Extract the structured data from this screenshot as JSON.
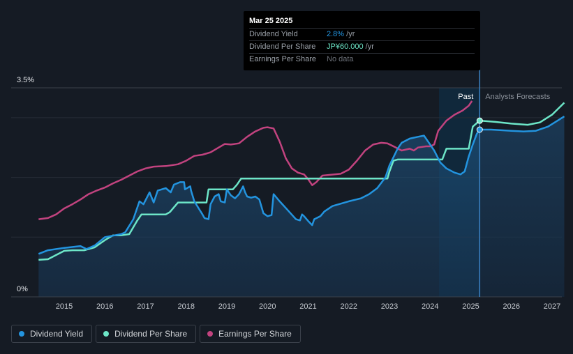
{
  "chart_data": {
    "type": "line",
    "x_range": [
      2014.0,
      2027.3
    ],
    "ylim": [
      0,
      3.5
    ],
    "y_tick_labels": [
      {
        "value": 3.5,
        "label": "3.5%"
      },
      {
        "value": 0,
        "label": "0%"
      }
    ],
    "x_ticks": [
      "2015",
      "2016",
      "2017",
      "2018",
      "2019",
      "2020",
      "2021",
      "2022",
      "2023",
      "2024",
      "2025",
      "2026",
      "2027"
    ],
    "grid": true,
    "regions": {
      "past_label": "Past",
      "forecast_label": "Analysts Forecasts",
      "forecast_start": 2025.22,
      "highlight_start": 2024.22
    },
    "series": [
      {
        "name": "Dividend Yield",
        "color": "#2394df",
        "points": [
          [
            2014.37,
            0.72
          ],
          [
            2014.6,
            0.78
          ],
          [
            2015.0,
            0.82
          ],
          [
            2015.4,
            0.85
          ],
          [
            2015.55,
            0.8
          ],
          [
            2015.75,
            0.86
          ],
          [
            2016.0,
            1.0
          ],
          [
            2016.4,
            1.05
          ],
          [
            2016.5,
            1.08
          ],
          [
            2016.7,
            1.3
          ],
          [
            2016.85,
            1.6
          ],
          [
            2016.95,
            1.55
          ],
          [
            2017.1,
            1.75
          ],
          [
            2017.2,
            1.58
          ],
          [
            2017.3,
            1.78
          ],
          [
            2017.5,
            1.82
          ],
          [
            2017.62,
            1.75
          ],
          [
            2017.7,
            1.88
          ],
          [
            2017.85,
            1.92
          ],
          [
            2017.95,
            1.92
          ],
          [
            2017.97,
            1.8
          ],
          [
            2018.1,
            1.85
          ],
          [
            2018.12,
            1.78
          ],
          [
            2018.2,
            1.6
          ],
          [
            2018.4,
            1.38
          ],
          [
            2018.45,
            1.32
          ],
          [
            2018.55,
            1.3
          ],
          [
            2018.6,
            1.55
          ],
          [
            2018.7,
            1.68
          ],
          [
            2018.8,
            1.72
          ],
          [
            2018.85,
            1.6
          ],
          [
            2018.95,
            1.58
          ],
          [
            2019.0,
            1.8
          ],
          [
            2019.1,
            1.7
          ],
          [
            2019.2,
            1.65
          ],
          [
            2019.3,
            1.72
          ],
          [
            2019.4,
            1.85
          ],
          [
            2019.45,
            1.75
          ],
          [
            2019.5,
            1.68
          ],
          [
            2019.6,
            1.66
          ],
          [
            2019.7,
            1.68
          ],
          [
            2019.8,
            1.63
          ],
          [
            2019.9,
            1.4
          ],
          [
            2020.0,
            1.35
          ],
          [
            2020.1,
            1.37
          ],
          [
            2020.15,
            1.72
          ],
          [
            2020.2,
            1.68
          ],
          [
            2020.3,
            1.6
          ],
          [
            2020.5,
            1.45
          ],
          [
            2020.7,
            1.3
          ],
          [
            2020.8,
            1.28
          ],
          [
            2020.85,
            1.38
          ],
          [
            2020.9,
            1.35
          ],
          [
            2021.0,
            1.27
          ],
          [
            2021.1,
            1.2
          ],
          [
            2021.15,
            1.3
          ],
          [
            2021.3,
            1.35
          ],
          [
            2021.4,
            1.43
          ],
          [
            2021.6,
            1.52
          ],
          [
            2021.8,
            1.56
          ],
          [
            2022.0,
            1.6
          ],
          [
            2022.3,
            1.65
          ],
          [
            2022.5,
            1.72
          ],
          [
            2022.7,
            1.82
          ],
          [
            2022.9,
            2.0
          ],
          [
            2023.0,
            2.2
          ],
          [
            2023.2,
            2.48
          ],
          [
            2023.3,
            2.58
          ],
          [
            2023.5,
            2.65
          ],
          [
            2023.7,
            2.68
          ],
          [
            2023.85,
            2.7
          ],
          [
            2024.0,
            2.55
          ],
          [
            2024.1,
            2.45
          ],
          [
            2024.25,
            2.25
          ],
          [
            2024.4,
            2.15
          ],
          [
            2024.6,
            2.08
          ],
          [
            2024.75,
            2.05
          ],
          [
            2024.85,
            2.1
          ],
          [
            2024.95,
            2.35
          ],
          [
            2025.05,
            2.55
          ],
          [
            2025.15,
            2.73
          ],
          [
            2025.22,
            2.8
          ],
          [
            2025.5,
            2.8
          ],
          [
            2026.0,
            2.78
          ],
          [
            2026.3,
            2.77
          ],
          [
            2026.6,
            2.78
          ],
          [
            2026.9,
            2.85
          ],
          [
            2027.3,
            3.02
          ]
        ]
      },
      {
        "name": "Dividend Per Share",
        "color": "#6de6c8",
        "points": [
          [
            2014.37,
            0.62
          ],
          [
            2014.6,
            0.63
          ],
          [
            2014.8,
            0.7
          ],
          [
            2015.0,
            0.77
          ],
          [
            2015.2,
            0.78
          ],
          [
            2015.5,
            0.78
          ],
          [
            2015.75,
            0.83
          ],
          [
            2016.0,
            0.95
          ],
          [
            2016.2,
            1.03
          ],
          [
            2016.4,
            1.03
          ],
          [
            2016.6,
            1.05
          ],
          [
            2016.8,
            1.28
          ],
          [
            2016.9,
            1.38
          ],
          [
            2017.0,
            1.38
          ],
          [
            2017.5,
            1.38
          ],
          [
            2017.6,
            1.42
          ],
          [
            2017.8,
            1.58
          ],
          [
            2017.9,
            1.58
          ],
          [
            2018.5,
            1.58
          ],
          [
            2018.55,
            1.8
          ],
          [
            2019.15,
            1.8
          ],
          [
            2019.25,
            1.88
          ],
          [
            2019.35,
            1.98
          ],
          [
            2022.95,
            1.98
          ],
          [
            2023.0,
            2.1
          ],
          [
            2023.1,
            2.28
          ],
          [
            2023.2,
            2.3
          ],
          [
            2024.3,
            2.3
          ],
          [
            2024.4,
            2.48
          ],
          [
            2024.95,
            2.48
          ],
          [
            2025.05,
            2.85
          ],
          [
            2025.22,
            2.95
          ],
          [
            2025.6,
            2.93
          ],
          [
            2026.0,
            2.9
          ],
          [
            2026.4,
            2.88
          ],
          [
            2026.7,
            2.92
          ],
          [
            2027.0,
            3.05
          ],
          [
            2027.3,
            3.25
          ]
        ]
      },
      {
        "name": "Earnings Per Share",
        "color": "#c2437f",
        "points": [
          [
            2014.37,
            1.3
          ],
          [
            2014.6,
            1.32
          ],
          [
            2014.8,
            1.38
          ],
          [
            2015.0,
            1.48
          ],
          [
            2015.2,
            1.55
          ],
          [
            2015.4,
            1.63
          ],
          [
            2015.6,
            1.72
          ],
          [
            2015.8,
            1.78
          ],
          [
            2016.0,
            1.83
          ],
          [
            2016.2,
            1.9
          ],
          [
            2016.4,
            1.96
          ],
          [
            2016.6,
            2.03
          ],
          [
            2016.8,
            2.1
          ],
          [
            2017.0,
            2.15
          ],
          [
            2017.2,
            2.18
          ],
          [
            2017.5,
            2.19
          ],
          [
            2017.8,
            2.22
          ],
          [
            2018.0,
            2.28
          ],
          [
            2018.2,
            2.36
          ],
          [
            2018.4,
            2.38
          ],
          [
            2018.6,
            2.42
          ],
          [
            2018.8,
            2.5
          ],
          [
            2018.95,
            2.56
          ],
          [
            2019.1,
            2.55
          ],
          [
            2019.3,
            2.57
          ],
          [
            2019.5,
            2.68
          ],
          [
            2019.7,
            2.77
          ],
          [
            2019.9,
            2.83
          ],
          [
            2020.0,
            2.84
          ],
          [
            2020.15,
            2.82
          ],
          [
            2020.3,
            2.6
          ],
          [
            2020.45,
            2.32
          ],
          [
            2020.6,
            2.15
          ],
          [
            2020.75,
            2.08
          ],
          [
            2020.9,
            2.05
          ],
          [
            2021.0,
            1.97
          ],
          [
            2021.1,
            1.87
          ],
          [
            2021.2,
            1.92
          ],
          [
            2021.35,
            2.03
          ],
          [
            2021.5,
            2.04
          ],
          [
            2021.8,
            2.06
          ],
          [
            2022.0,
            2.13
          ],
          [
            2022.2,
            2.28
          ],
          [
            2022.4,
            2.45
          ],
          [
            2022.6,
            2.55
          ],
          [
            2022.8,
            2.58
          ],
          [
            2022.95,
            2.57
          ],
          [
            2023.1,
            2.52
          ],
          [
            2023.3,
            2.45
          ],
          [
            2023.5,
            2.48
          ],
          [
            2023.6,
            2.45
          ],
          [
            2023.7,
            2.5
          ],
          [
            2023.9,
            2.52
          ],
          [
            2024.0,
            2.52
          ],
          [
            2024.1,
            2.55
          ],
          [
            2024.2,
            2.78
          ],
          [
            2024.4,
            2.95
          ],
          [
            2024.6,
            3.05
          ],
          [
            2024.8,
            3.12
          ],
          [
            2024.95,
            3.2
          ],
          [
            2025.03,
            3.28
          ]
        ]
      }
    ],
    "markers": [
      {
        "series": "Dividend Per Share",
        "x": 2025.22,
        "y": 2.95
      },
      {
        "series": "Dividend Yield",
        "x": 2025.22,
        "y": 2.8
      }
    ]
  },
  "tooltip": {
    "date": "Mar 25 2025",
    "rows": [
      {
        "label": "Dividend Yield",
        "value": "2.8%",
        "suffix": " /yr",
        "color": "#2394df"
      },
      {
        "label": "Dividend Per Share",
        "value": "JP¥60.000",
        "suffix": " /yr",
        "color": "#6de6c8"
      },
      {
        "label": "Earnings Per Share",
        "value": "No data",
        "suffix": "",
        "color": "#6b7078"
      }
    ]
  },
  "legend": [
    {
      "label": "Dividend Yield",
      "color": "#2394df"
    },
    {
      "label": "Dividend Per Share",
      "color": "#6de6c8"
    },
    {
      "label": "Earnings Per Share",
      "color": "#c2437f"
    }
  ]
}
